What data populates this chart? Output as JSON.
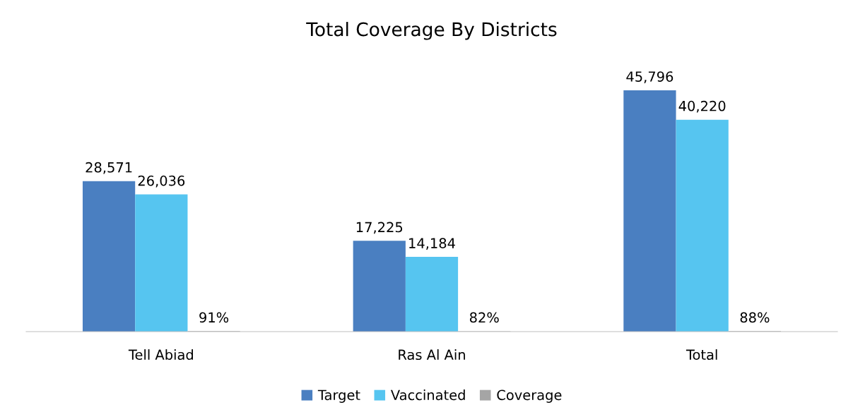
{
  "chart_data": {
    "type": "bar",
    "title": "Total Coverage By Districts",
    "categories": [
      "Tell Abiad",
      "Ras Al Ain",
      "Total"
    ],
    "series": [
      {
        "name": "Target",
        "color": "#4a7fc1",
        "values": [
          28571,
          17225,
          45796
        ],
        "value_labels": [
          "28,571",
          "17,225",
          "45,796"
        ]
      },
      {
        "name": "Vaccinated",
        "color": "#56c5f0",
        "values": [
          26036,
          14184,
          40220
        ],
        "value_labels": [
          "26,036",
          "14,184",
          "40,220"
        ]
      },
      {
        "name": "Coverage",
        "color": "#a5a5a5",
        "values": [
          91,
          82,
          88
        ],
        "value_labels": [
          "91%",
          "82%",
          "88%"
        ]
      }
    ],
    "legend": "bottom",
    "grid": false
  }
}
